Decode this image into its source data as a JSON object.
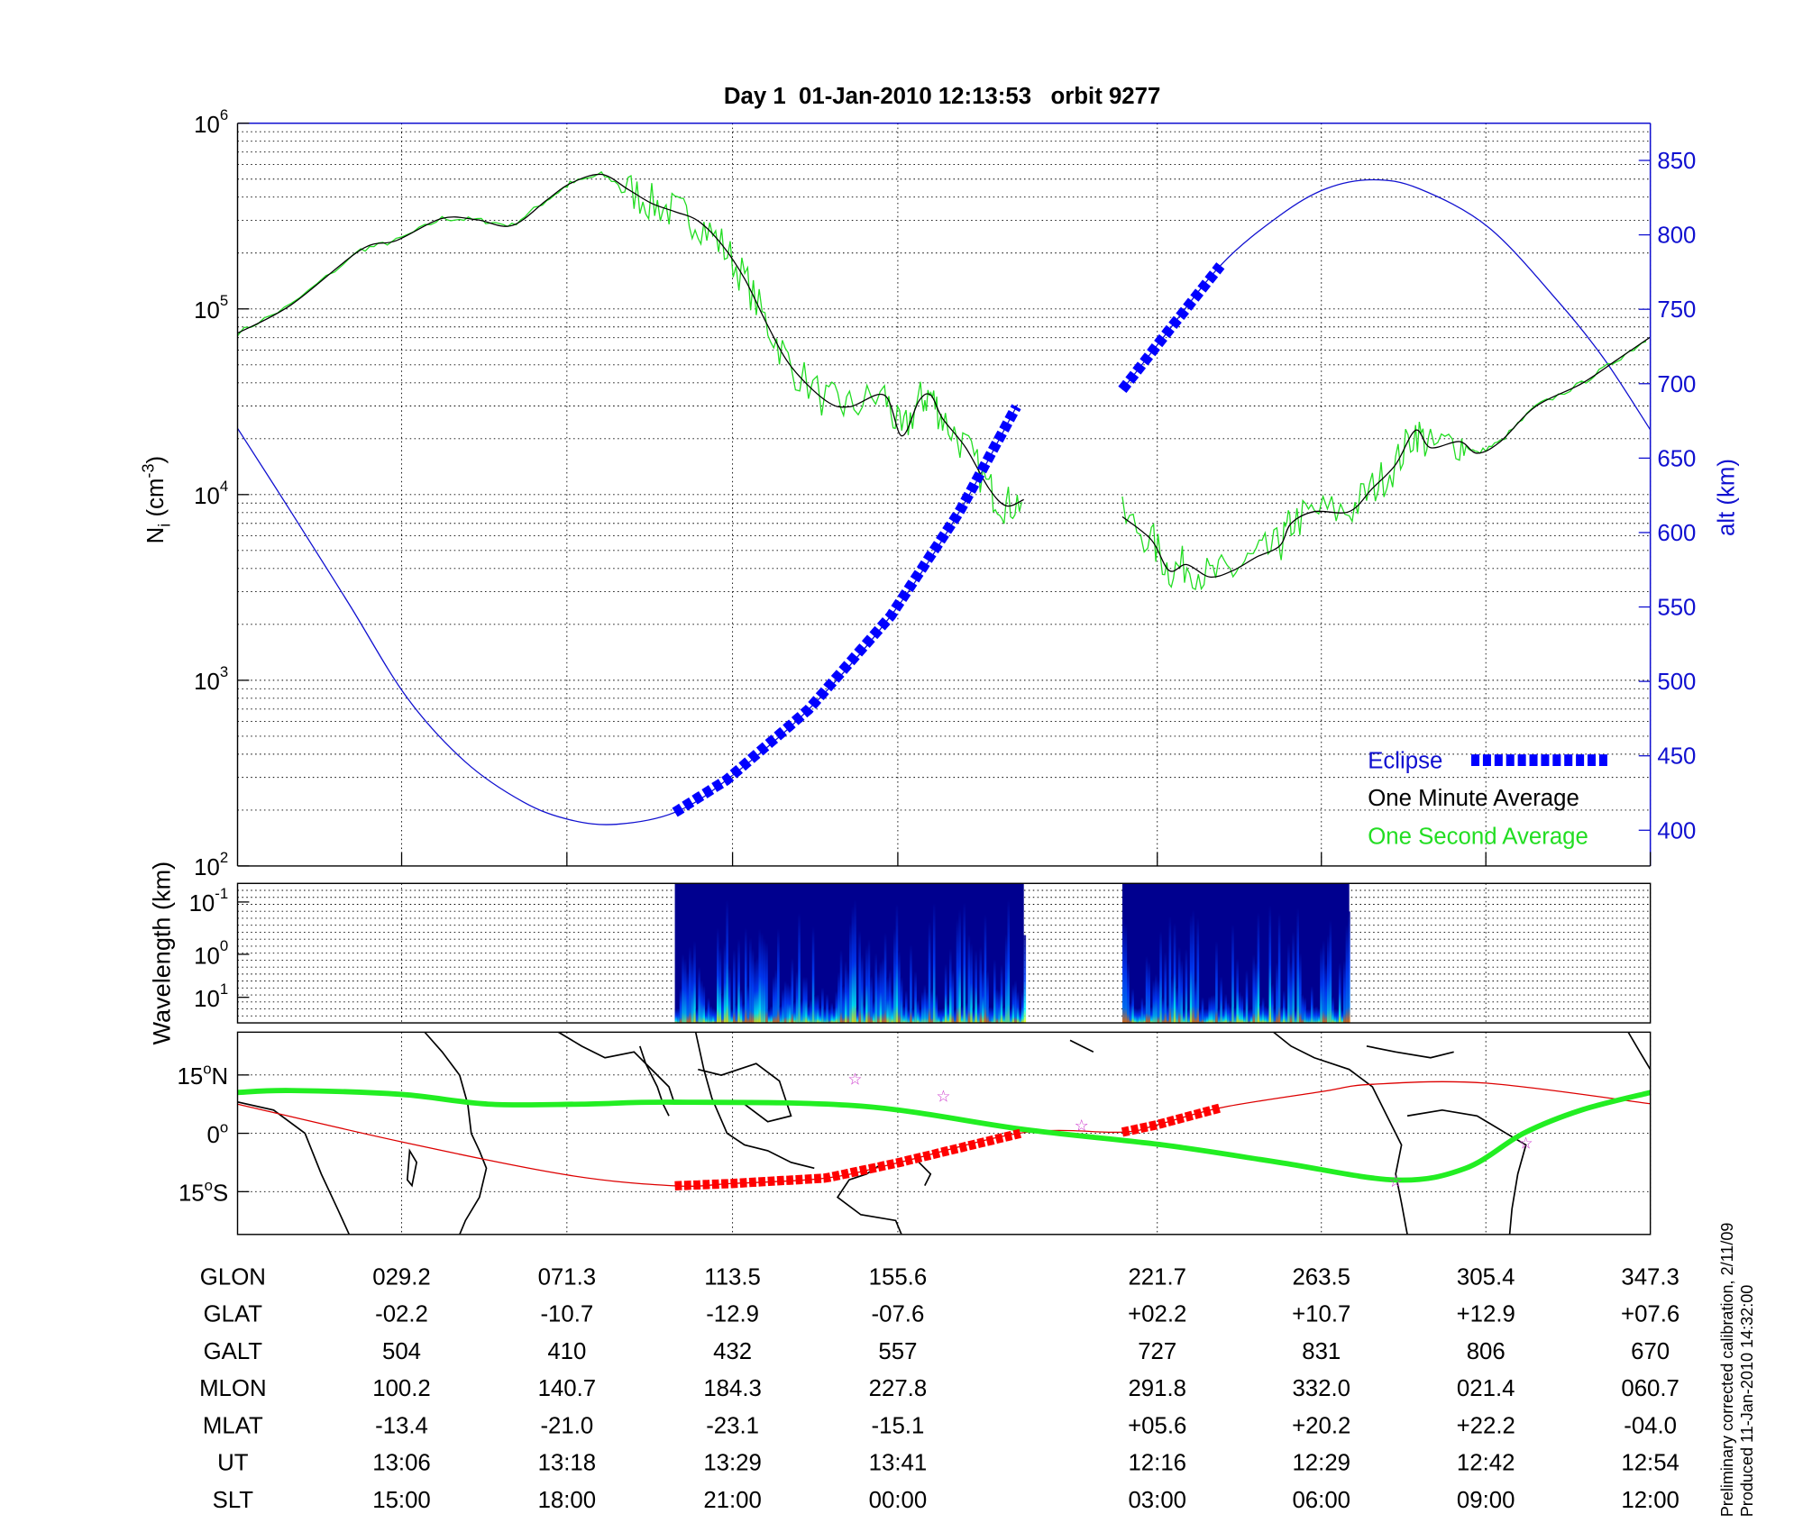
{
  "title": "Day 1  01-Jan-2010 12:13:53   orbit 9277",
  "footer": [
    "Preliminary corrected calibration, 2/11/09",
    "Produced 11-Jan-2010 14:32:00"
  ],
  "colors": {
    "one_minute": "#000000",
    "one_second": "#22dd22",
    "altitude": "#1010d0",
    "eclipse": "#0000ff",
    "track": "#dd0000",
    "track_eclipse": "#ff0000",
    "mag_equator": "#22ee22",
    "star": "#cc33cc"
  },
  "chart_data": [
    {
      "type": "line",
      "name": "ion-density-panel",
      "xlabel": "GLON",
      "xlim": [
        -12.6,
        347.3
      ],
      "ylabel": "N_i (cm^-3)",
      "yscale": "log",
      "ylim": [
        100,
        1000000
      ],
      "yticks": [
        {
          "base": "10",
          "exp": "2",
          "v": 100
        },
        {
          "base": "10",
          "exp": "3",
          "v": 1000
        },
        {
          "base": "10",
          "exp": "4",
          "v": 10000
        },
        {
          "base": "10",
          "exp": "5",
          "v": 100000
        },
        {
          "base": "10",
          "exp": "6",
          "v": 1000000
        }
      ],
      "y2label": "alt (km)",
      "y2lim": [
        376,
        875
      ],
      "y2ticks": [
        "400",
        "450",
        "500",
        "550",
        "600",
        "650",
        "700",
        "750",
        "800",
        "850"
      ],
      "grid": true,
      "legend": {
        "placement": "bottom-right",
        "entries": [
          "Eclipse",
          "One Minute Average",
          "One Second Average"
        ]
      },
      "series": [
        {
          "name": "One Minute Average",
          "segments": [
            [
              [
                -12.6,
                74000
              ],
              [
                1.0,
                105000
              ],
              [
                18.8,
                208000
              ],
              [
                27.8,
                233000
              ],
              [
                39.5,
                307000
              ],
              [
                48.4,
                302000
              ],
              [
                57.3,
                281000
              ],
              [
                66.2,
                386000
              ],
              [
                72.1,
                473000
              ],
              [
                80.1,
                530000
              ],
              [
                86.9,
                440000
              ],
              [
                92.9,
                370000
              ],
              [
                98.8,
                334000
              ],
              [
                104.7,
                298000
              ],
              [
                110.7,
                223000
              ],
              [
                116.6,
                145000
              ],
              [
                122.5,
                81000
              ],
              [
                128.4,
                49000
              ],
              [
                137.3,
                32000
              ],
              [
                143.3,
                29700
              ],
              [
                152.2,
                34300
              ],
              [
                156.6,
                20700
              ],
              [
                161.0,
                32000
              ],
              [
                164.0,
                34300
              ],
              [
                167.0,
                25700
              ],
              [
                172.9,
                17900
              ],
              [
                178.8,
                10800
              ],
              [
                183.2,
                8700
              ],
              [
                187.7,
                9400
              ]
            ],
            [
              [
                212.8,
                7600
              ],
              [
                220.2,
                5700
              ],
              [
                224.7,
                3900
              ],
              [
                229.2,
                4200
              ],
              [
                235.1,
                3600
              ],
              [
                241.0,
                3900
              ],
              [
                246.9,
                4600
              ],
              [
                252.9,
                5300
              ],
              [
                255.8,
                7000
              ],
              [
                261.7,
                8100
              ],
              [
                270.6,
                8100
              ],
              [
                276.5,
                10800
              ],
              [
                282.4,
                14500
              ],
              [
                287.5,
                22200
              ],
              [
                291.3,
                17900
              ],
              [
                298.7,
                19300
              ],
              [
                303.2,
                16700
              ],
              [
                309.1,
                19300
              ],
              [
                318.0,
                29700
              ],
              [
                329.8,
                39600
              ],
              [
                338.7,
                53000
              ],
              [
                347.3,
                70500
              ]
            ]
          ]
        },
        {
          "name": "altitude",
          "axis": "y2",
          "segments": [
            [
              [
                -12.6,
                670
              ],
              [
                1.0,
                614
              ],
              [
                15.8,
                552
              ],
              [
                30.6,
                489
              ],
              [
                45.4,
                446
              ],
              [
                60.2,
                419
              ],
              [
                72.1,
                407
              ],
              [
                83.9,
                404
              ],
              [
                98.8,
                412
              ],
              [
                112.1,
                434
              ],
              [
                132.8,
                481
              ],
              [
                153.8,
                544
              ],
              [
                171.3,
                614
              ],
              [
                186.1,
                686
              ]
            ],
            [
              [
                212.8,
                696
              ],
              [
                223.2,
                731
              ],
              [
                238.0,
                780
              ],
              [
                252.9,
                813
              ],
              [
                264.7,
                831
              ],
              [
                276.5,
                837
              ],
              [
                288.4,
                831
              ],
              [
                306.1,
                805
              ],
              [
                323.9,
                755
              ],
              [
                335.7,
                716
              ],
              [
                347.3,
                669
              ]
            ]
          ]
        },
        {
          "name": "Eclipse",
          "axis": "y2",
          "ranges": [
            [
              98.8,
              187.7
            ],
            [
              212.8,
              238.0
            ]
          ]
        }
      ]
    },
    {
      "type": "heatmap",
      "name": "spectrogram-panel",
      "ylabel": "Wavelength (km)",
      "yticks": [
        {
          "base": "10",
          "exp": "-1"
        },
        {
          "base": "10",
          "exp": "0"
        },
        {
          "base": "10",
          "exp": "1"
        }
      ],
      "data_ranges": [
        [
          98.8,
          187.7
        ],
        [
          212.8,
          270.6
        ]
      ],
      "colormap": [
        "#00008f",
        "#0000ff",
        "#0080ff",
        "#00ffff",
        "#80ff80",
        "#ffff00",
        "#ff8000"
      ]
    },
    {
      "type": "line",
      "name": "map-panel",
      "ylim": [
        -26,
        26
      ],
      "yticks": [
        {
          "deg": "15",
          "hemi": "N",
          "v": 15
        },
        {
          "deg": "0",
          "hemi": "",
          "v": 0
        },
        {
          "deg": "15",
          "hemi": "S",
          "v": -15
        }
      ],
      "series": [
        {
          "name": "satellite track",
          "points": [
            [
              -12.6,
              7.5
            ],
            [
              29.2,
              -2.2
            ],
            [
              71.3,
              -10.7
            ],
            [
              98.8,
              -13.5
            ],
            [
              113.5,
              -12.9
            ],
            [
              137.3,
              -11.5
            ],
            [
              155.6,
              -7.6
            ],
            [
              187.7,
              0.2
            ],
            [
              212.8,
              0.3
            ],
            [
              221.7,
              2.2
            ],
            [
              238.0,
              6.6
            ],
            [
              263.5,
              10.7
            ],
            [
              276.5,
              12.6
            ],
            [
              305.4,
              12.9
            ],
            [
              347.3,
              7.6
            ]
          ]
        },
        {
          "name": "magnetic equator",
          "points": [
            [
              -12.6,
              10.5
            ],
            [
              1.0,
              11.0
            ],
            [
              29.2,
              10.0
            ],
            [
              51.3,
              7.5
            ],
            [
              75.0,
              7.5
            ],
            [
              98.8,
              8.0
            ],
            [
              146.2,
              7.0
            ],
            [
              187.7,
              1.0
            ],
            [
              223.2,
              -3.0
            ],
            [
              252.9,
              -7.5
            ],
            [
              282.4,
              -12.0
            ],
            [
              300.2,
              -9.0
            ],
            [
              315.0,
              0.0
            ],
            [
              329.8,
              6.0
            ],
            [
              347.3,
              10.5
            ]
          ]
        },
        {
          "name": "stars",
          "points": [
            [
              144.7,
              14.0
            ],
            [
              167.2,
              9.6
            ],
            [
              202.4,
              2.1
            ],
            [
              282.4,
              -12.3
            ],
            [
              315.6,
              -2.4
            ]
          ]
        }
      ]
    }
  ],
  "table": {
    "columns_glon": [
      29.2,
      71.3,
      113.5,
      155.6,
      221.7,
      263.5,
      305.4,
      347.3
    ],
    "rows": [
      {
        "label": "GLON",
        "values": [
          "029.2",
          "071.3",
          "113.5",
          "155.6",
          "221.7",
          "263.5",
          "305.4",
          "347.3"
        ]
      },
      {
        "label": "GLAT",
        "values": [
          "-02.2",
          "-10.7",
          "-12.9",
          "-07.6",
          "+02.2",
          "+10.7",
          "+12.9",
          "+07.6"
        ]
      },
      {
        "label": "GALT",
        "values": [
          "504",
          "410",
          "432",
          "557",
          "727",
          "831",
          "806",
          "670"
        ]
      },
      {
        "label": "MLON",
        "values": [
          "100.2",
          "140.7",
          "184.3",
          "227.8",
          "291.8",
          "332.0",
          "021.4",
          "060.7"
        ]
      },
      {
        "label": "MLAT",
        "values": [
          "-13.4",
          "-21.0",
          "-23.1",
          "-15.1",
          "+05.6",
          "+20.2",
          "+22.2",
          "-04.0"
        ]
      },
      {
        "label": "UT",
        "values": [
          "13:06",
          "13:18",
          "13:29",
          "13:41",
          "12:16",
          "12:29",
          "12:42",
          "12:54"
        ]
      },
      {
        "label": "SLT",
        "values": [
          "15:00",
          "18:00",
          "21:00",
          "00:00",
          "03:00",
          "06:00",
          "09:00",
          "12:00"
        ]
      }
    ]
  }
}
